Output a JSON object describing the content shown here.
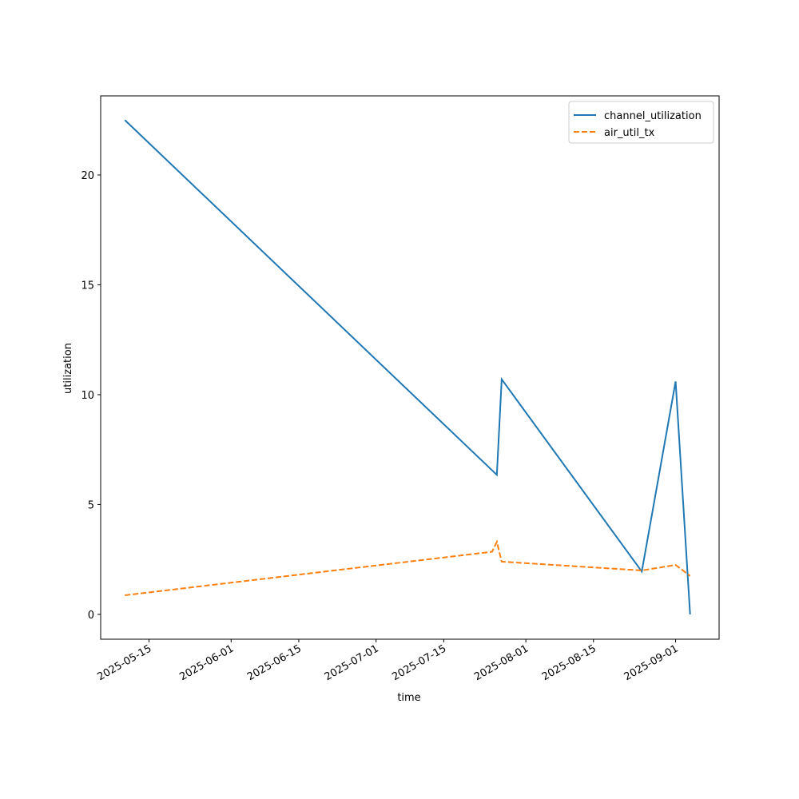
{
  "chart_data": {
    "type": "line",
    "x_label": "time",
    "y_label": "utilization",
    "xlim": [
      "2025-05-05",
      "2025-09-10"
    ],
    "xticks": [
      "2025-05-15",
      "2025-06-01",
      "2025-06-15",
      "2025-07-01",
      "2025-07-15",
      "2025-08-01",
      "2025-08-15",
      "2025-09-01"
    ],
    "ylim": [
      -1.13,
      23.6
    ],
    "yticks": [
      0,
      5,
      10,
      15,
      20
    ],
    "legend": "upper right",
    "series": [
      {
        "name": "channel_utilization",
        "color": "#1f77b4",
        "linestyle": "solid",
        "x": [
          "2025-05-10",
          "2025-07-26",
          "2025-07-27",
          "2025-08-25",
          "2025-09-01",
          "2025-09-04"
        ],
        "values": [
          22.5,
          6.35,
          10.7,
          1.95,
          10.6,
          0
        ]
      },
      {
        "name": "air_util_tx",
        "color": "#ff7f0e",
        "linestyle": "dashed",
        "x": [
          "2025-05-10",
          "2025-07-25",
          "2025-07-26",
          "2025-07-27",
          "2025-08-25",
          "2025-09-01",
          "2025-09-04"
        ],
        "values": [
          0.87,
          2.85,
          3.3,
          2.4,
          2.0,
          2.25,
          1.75
        ]
      }
    ]
  }
}
